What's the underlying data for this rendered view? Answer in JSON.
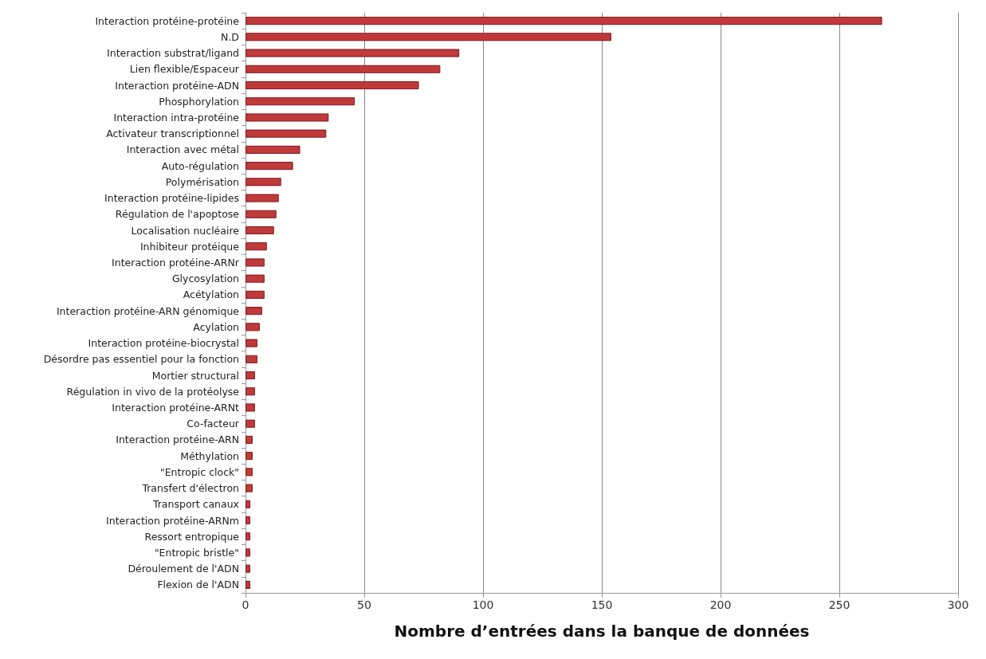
{
  "chart_data": {
    "type": "bar",
    "orientation": "horizontal",
    "xlabel": "Nombre d’entrées dans la banque de données",
    "categories": [
      "Interaction protéine-protéine",
      "N.D",
      "Interaction substrat/ligand",
      "Lien flexible/Espaceur",
      "Interaction protéine-ADN",
      "Phosphorylation",
      "Interaction intra-protéine",
      "Activateur transcriptionnel",
      "Interaction avec métal",
      "Auto-régulation",
      "Polymérisation",
      "Interaction protéine-lipides",
      "Régulation de l'apoptose",
      "Localisation nucléaire",
      "Inhibiteur protéique",
      "Interaction protéine-ARNr",
      "Glycosylation",
      "Acétylation",
      "Interaction protéine-ARN génomique",
      "Acylation",
      "Interaction protéine-biocrystal",
      "Désordre pas essentiel pour la fonction",
      "Mortier structural",
      "Régulation in vivo de la protéolyse",
      "Interaction protéine-ARNt",
      "Co-facteur",
      "Interaction protéine-ARN",
      "Méthylation",
      "\"Entropic clock\"",
      "Transfert d'électron",
      "Transport canaux",
      "Interaction protéine-ARNm",
      "Ressort entropique",
      "\"Entropic bristle\"",
      "Déroulement de l'ADN",
      "Flexion de l'ADN"
    ],
    "values": [
      268,
      154,
      90,
      82,
      73,
      46,
      35,
      34,
      23,
      20,
      15,
      14,
      13,
      12,
      9,
      8,
      8,
      8,
      7,
      6,
      5,
      5,
      4,
      4,
      4,
      4,
      3,
      3,
      3,
      3,
      2,
      2,
      2,
      2,
      2,
      2
    ],
    "color": "#c0393b",
    "xlim": [
      0,
      300
    ],
    "xticks": [
      0,
      50,
      100,
      150,
      200,
      250,
      300
    ],
    "grid": "x"
  }
}
